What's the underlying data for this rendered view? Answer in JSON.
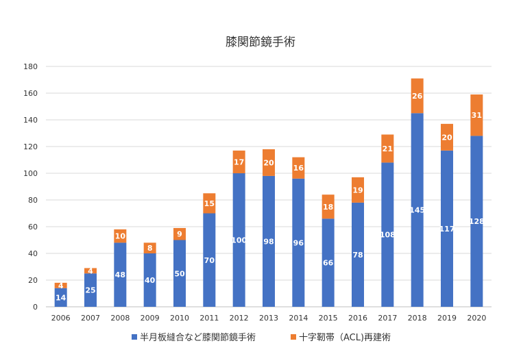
{
  "chart_data": {
    "type": "bar",
    "stacked": true,
    "title": "膝関節鏡手術",
    "xlabel": "",
    "ylabel": "",
    "ylim": [
      0,
      180
    ],
    "yticks": [
      0,
      20,
      40,
      60,
      80,
      100,
      120,
      140,
      160,
      180
    ],
    "grid": true,
    "legend_position": "bottom",
    "categories": [
      "2006",
      "2007",
      "2008",
      "2009",
      "2010",
      "2011",
      "2012",
      "2013",
      "2014",
      "2015",
      "2016",
      "2017",
      "2018",
      "2019",
      "2020"
    ],
    "series": [
      {
        "name": "半月板縫合など膝関節鏡手術",
        "color": "#4472C4",
        "values": [
          14,
          25,
          48,
          40,
          50,
          70,
          100,
          98,
          96,
          66,
          78,
          108,
          145,
          117,
          128
        ]
      },
      {
        "name": "十字靭帯（ACL)再建術",
        "color": "#ED7D31",
        "values": [
          4,
          4,
          10,
          8,
          9,
          15,
          17,
          20,
          16,
          18,
          19,
          21,
          26,
          20,
          31
        ]
      }
    ]
  }
}
